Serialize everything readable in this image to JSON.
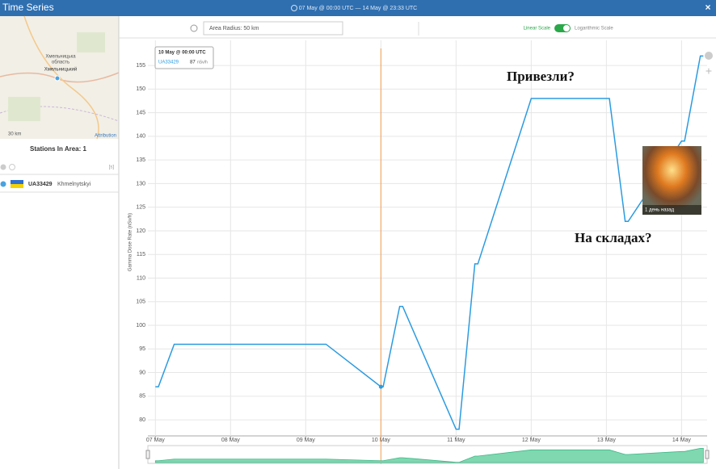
{
  "header": {
    "title": "Time Series",
    "range": "07 May @ 00:00 UTC — 14 May @ 23:33 UTC"
  },
  "map": {
    "labels": [
      "Хмельницька",
      "область",
      "Хмельницький"
    ],
    "scale": "30 km",
    "attribution": "Attribution"
  },
  "sidebar": {
    "stations_title": "Stations In Area: 1",
    "toggle": "[s]",
    "station": {
      "id": "UA33429",
      "name": "Khmelnytskyi"
    }
  },
  "toolbar": {
    "radius": "Area Radius: 50 km",
    "linear": "Linear Scale",
    "log": "Logarithmic Scale"
  },
  "chart_data": {
    "type": "line",
    "y_label": "Gamma Dose Rate (nSv/h)",
    "x": [
      0,
      0.04,
      0.25,
      1.0,
      1.25,
      1.29,
      2.0,
      2.27,
      3.0,
      3.03,
      3.25,
      3.29,
      4.0,
      4.04,
      4.25,
      4.29,
      5.0,
      5.25,
      5.29,
      6.0,
      6.04,
      6.25,
      6.29,
      7.0,
      7.04,
      7.25,
      7.29
    ],
    "series": [
      {
        "name": "UA33429",
        "color": "#2b9be0",
        "values": [
          87,
          87,
          96,
          96,
          96,
          96,
          96,
          96,
          87,
          87,
          104,
          104,
          78,
          78,
          113,
          113,
          148,
          148,
          148,
          148,
          148,
          122,
          122,
          139,
          139,
          157,
          157
        ]
      }
    ],
    "xlim": [
      -0.1,
      7.34
    ],
    "xticks": [
      {
        "value": 0,
        "label": "07 May"
      },
      {
        "value": 1,
        "label": "08 May"
      },
      {
        "value": 2,
        "label": "09 May"
      },
      {
        "value": 3,
        "label": "10 May"
      },
      {
        "value": 4,
        "label": "11 May"
      },
      {
        "value": 5,
        "label": "12 May"
      },
      {
        "value": 6,
        "label": "13 May"
      },
      {
        "value": 7,
        "label": "14 May"
      }
    ],
    "ylim": [
      76.6,
      158.6
    ],
    "yticks": [
      80,
      85,
      90,
      95,
      100,
      105,
      110,
      115,
      120,
      125,
      130,
      135,
      140,
      145,
      150,
      155
    ],
    "grid": true,
    "log_scale": false,
    "crosshair_x": 3,
    "crosshair_color": "#f39c50",
    "tooltip": {
      "title": "10 May @ 00:00 UTC",
      "series": "UA33429",
      "value": 87,
      "unit": "nSv/h"
    },
    "annotations": [
      "Привезли?",
      "На складах?"
    ],
    "image_caption": "1 день назад"
  }
}
